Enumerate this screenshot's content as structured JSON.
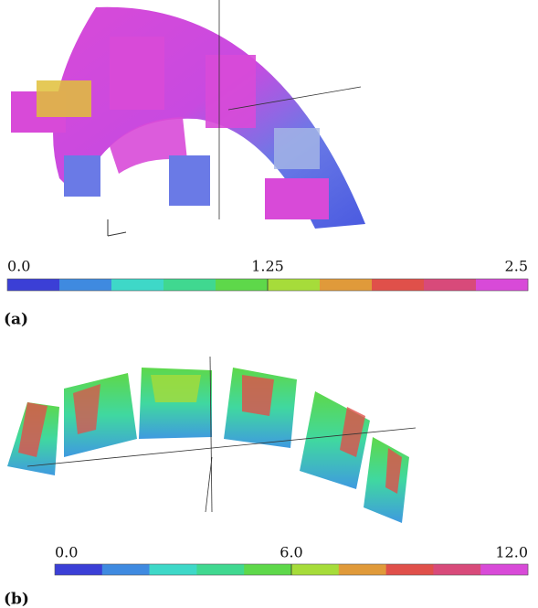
{
  "panels": [
    {
      "label": "(a)",
      "colorbar": {
        "ticks": [
          "0.0",
          "1.25",
          "2.5"
        ],
        "colors": [
          "#3b3fd6",
          "#3f8ae0",
          "#3ed8c8",
          "#40d890",
          "#5ed84a",
          "#a6dc3a",
          "#e09a3a",
          "#e0504a",
          "#d84a7a",
          "#d84ad8"
        ]
      }
    },
    {
      "label": "(b)",
      "colorbar": {
        "ticks": [
          "0.0",
          "6.0",
          "12.0"
        ],
        "colors": [
          "#3b3fd6",
          "#3f8ae0",
          "#3ed8c8",
          "#40d890",
          "#5ed84a",
          "#a6dc3a",
          "#e09a3a",
          "#e0504a",
          "#d84a7a",
          "#d84ad8"
        ]
      }
    }
  ]
}
